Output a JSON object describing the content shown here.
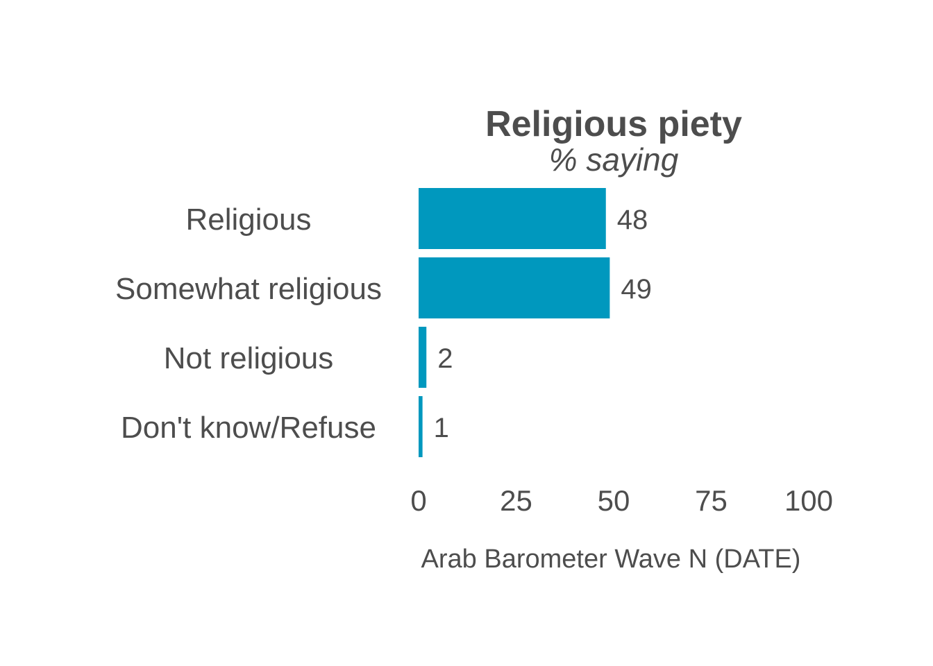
{
  "chart_data": {
    "type": "bar",
    "orientation": "horizontal",
    "title": "Religious piety",
    "subtitle": "% saying",
    "categories": [
      "Religious",
      "Somewhat religious",
      "Not religious",
      "Don't know/Refuse"
    ],
    "values": [
      48,
      49,
      2,
      1
    ],
    "value_labels": [
      "48",
      "49",
      "2",
      "1"
    ],
    "xlim": [
      0,
      100
    ],
    "x_ticks": [
      0,
      25,
      50,
      75,
      100
    ],
    "x_tick_labels": [
      "0",
      "25",
      "50",
      "75",
      "100"
    ],
    "caption": "Arab Barometer Wave N (DATE)",
    "grid": false,
    "legend": "none",
    "bar_color": "#0098be",
    "text_color": "#4d4d4d"
  }
}
